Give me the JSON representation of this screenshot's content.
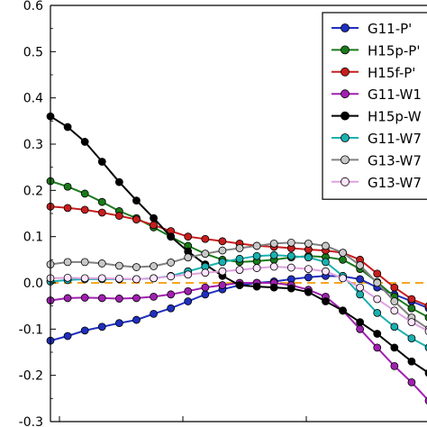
{
  "chart_data": {
    "type": "line",
    "title": "",
    "xlabel": "",
    "ylabel": "",
    "ylim": [
      -0.3,
      0.6
    ],
    "yticks": [
      "0.6",
      "0.5",
      "0.4",
      "0.3",
      "0.2",
      "0.1",
      "0.0",
      "-0.1",
      "-0.2",
      "-0.3"
    ],
    "xticks": [],
    "grid": false,
    "legend_placement": "top-right",
    "reference_line": {
      "y": 0.0,
      "color": "#f5a623",
      "style": "dashed"
    },
    "x": [
      0,
      1,
      2,
      3,
      4,
      5,
      6,
      7,
      8,
      9,
      10,
      11,
      12,
      13,
      14,
      15,
      16,
      17,
      18,
      19,
      20,
      21,
      22
    ],
    "series": [
      {
        "name": "G11-P'",
        "color": "#1f2fbf",
        "marker_fill": "#1f2fbf",
        "values": [
          -0.125,
          -0.115,
          -0.103,
          -0.095,
          -0.087,
          -0.08,
          -0.067,
          -0.055,
          -0.04,
          -0.025,
          -0.014,
          -0.005,
          0.0,
          0.003,
          0.008,
          0.012,
          0.015,
          0.014,
          0.008,
          -0.01,
          -0.025,
          -0.04,
          -0.055
        ]
      },
      {
        "name": "H15p-P'",
        "color": "#1a7a1a",
        "marker_fill": "#1a7a1a",
        "values": [
          0.22,
          0.208,
          0.193,
          0.175,
          0.155,
          0.14,
          0.12,
          0.1,
          0.08,
          0.063,
          0.05,
          0.045,
          0.047,
          0.05,
          0.055,
          0.058,
          0.056,
          0.05,
          0.03,
          0.002,
          -0.03,
          -0.055,
          -0.075
        ]
      },
      {
        "name": "H15f-P'",
        "color": "#c81e1e",
        "marker_fill": "#c81e1e",
        "values": [
          0.165,
          0.162,
          0.158,
          0.152,
          0.145,
          0.137,
          0.125,
          0.112,
          0.1,
          0.095,
          0.09,
          0.085,
          0.08,
          0.078,
          0.075,
          0.072,
          0.07,
          0.065,
          0.05,
          0.02,
          -0.01,
          -0.035,
          -0.05
        ]
      },
      {
        "name": "G11-W1",
        "color": "#a020b0",
        "marker_fill": "#a020b0",
        "values": [
          -0.038,
          -0.033,
          -0.032,
          -0.033,
          -0.034,
          -0.033,
          -0.03,
          -0.025,
          -0.018,
          -0.01,
          -0.005,
          0.0,
          0.0,
          0.0,
          -0.005,
          -0.015,
          -0.03,
          -0.06,
          -0.1,
          -0.14,
          -0.18,
          -0.215,
          -0.255
        ]
      },
      {
        "name": "H15p-W",
        "color": "#000000",
        "marker_fill": "#000000",
        "values": [
          0.36,
          0.337,
          0.305,
          0.262,
          0.218,
          0.178,
          0.14,
          0.1,
          0.068,
          0.04,
          0.015,
          -0.005,
          -0.008,
          -0.01,
          -0.012,
          -0.02,
          -0.04,
          -0.06,
          -0.085,
          -0.11,
          -0.14,
          -0.17,
          -0.195
        ]
      },
      {
        "name": "G11-W7",
        "color": "#1ab0b0",
        "marker_fill": "#1ab0b0",
        "values": [
          0.003,
          0.006,
          0.008,
          0.008,
          0.008,
          0.008,
          0.01,
          0.015,
          0.025,
          0.035,
          0.045,
          0.052,
          0.058,
          0.06,
          0.058,
          0.055,
          0.045,
          0.015,
          -0.025,
          -0.065,
          -0.095,
          -0.12,
          -0.14
        ]
      },
      {
        "name": "G13-W7",
        "color": "#808080",
        "marker_fill": "#c8c8c8",
        "values": [
          0.04,
          0.045,
          0.045,
          0.042,
          0.037,
          0.034,
          0.036,
          0.044,
          0.055,
          0.063,
          0.07,
          0.075,
          0.08,
          0.085,
          0.087,
          0.085,
          0.08,
          0.065,
          0.038,
          0.0,
          -0.04,
          -0.075,
          -0.1
        ]
      },
      {
        "name": "G13-W7",
        "color": "#e0a0e0",
        "marker_fill": "#ffe6ff",
        "values": [
          0.01,
          0.011,
          0.01,
          0.01,
          0.009,
          0.008,
          0.01,
          0.014,
          0.018,
          0.022,
          0.025,
          0.028,
          0.032,
          0.035,
          0.033,
          0.03,
          0.025,
          0.01,
          -0.01,
          -0.035,
          -0.06,
          -0.085,
          -0.105
        ]
      }
    ]
  }
}
